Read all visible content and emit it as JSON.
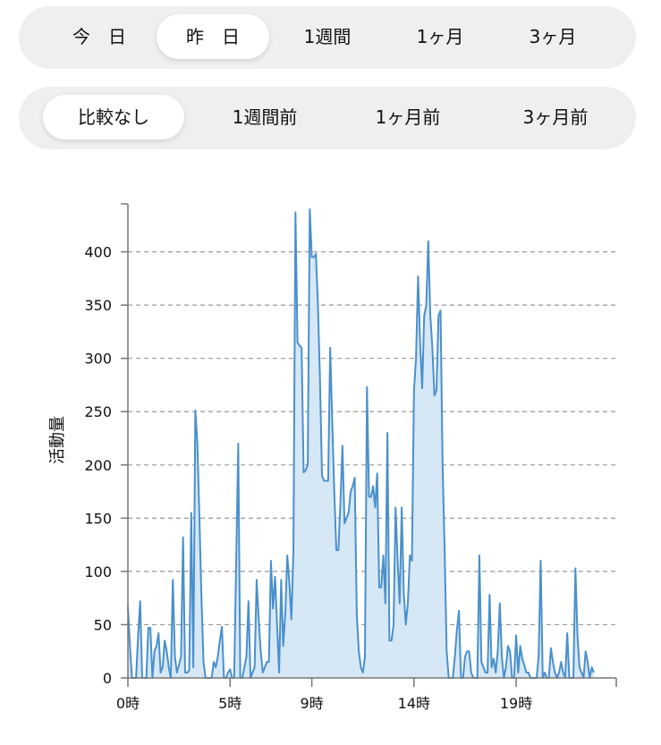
{
  "period_selector": {
    "options": [
      "今　日",
      "昨　日",
      "1週間",
      "1ヶ月",
      "3ヶ月"
    ],
    "selected": "昨　日"
  },
  "compare_selector": {
    "options": [
      "比較なし",
      "1週間前",
      "1ヶ月前",
      "3ヶ月前"
    ],
    "selected": "比較なし"
  },
  "colors": {
    "line": "#4a90cc",
    "fill": "#d6e7f6",
    "grid": "#9a9a9a"
  },
  "chart_data": {
    "type": "area",
    "ylabel": "活動量",
    "xlabel": "",
    "ylim": [
      0,
      445
    ],
    "xlim": [
      0,
      23.9
    ],
    "yticks": [
      0,
      50,
      100,
      150,
      200,
      250,
      300,
      350,
      400
    ],
    "xticks": [
      {
        "value": 0,
        "label": "0時"
      },
      {
        "value": 5,
        "label": "5時"
      },
      {
        "value": 9,
        "label": "9時"
      },
      {
        "value": 14,
        "label": "14時"
      },
      {
        "value": 19,
        "label": "19時"
      }
    ],
    "grid": true,
    "x_step_hours": 0.1,
    "values": [
      67,
      30,
      0,
      0,
      0,
      40,
      72,
      0,
      0,
      0,
      47,
      47,
      0,
      25,
      30,
      42,
      5,
      10,
      35,
      25,
      10,
      0,
      92,
      20,
      5,
      12,
      20,
      132,
      5,
      5,
      7,
      155,
      10,
      251,
      220,
      150,
      75,
      15,
      0,
      0,
      0,
      0,
      15,
      10,
      20,
      35,
      48,
      0,
      0,
      5,
      8,
      0,
      0,
      110,
      220,
      0,
      0,
      10,
      20,
      72,
      0,
      5,
      10,
      92,
      55,
      25,
      5,
      10,
      15,
      15,
      110,
      65,
      95,
      50,
      5,
      92,
      30,
      60,
      115,
      90,
      55,
      120,
      437,
      315,
      312,
      310,
      193,
      195,
      200,
      440,
      395,
      395,
      398,
      350,
      280,
      190,
      185,
      185,
      185,
      310,
      240,
      175,
      120,
      120,
      165,
      218,
      145,
      150,
      155,
      175,
      180,
      188,
      60,
      25,
      10,
      5,
      20,
      273,
      170,
      170,
      180,
      160,
      192,
      85,
      85,
      115,
      70,
      230,
      35,
      35,
      50,
      160,
      110,
      70,
      160,
      80,
      50,
      70,
      115,
      110,
      270,
      300,
      377,
      315,
      272,
      340,
      350,
      410,
      340,
      310,
      265,
      270,
      340,
      345,
      200,
      120,
      25,
      0,
      0,
      0,
      20,
      45,
      63,
      0,
      0,
      20,
      25,
      25,
      5,
      0,
      0,
      0,
      115,
      15,
      10,
      5,
      5,
      78,
      10,
      18,
      5,
      25,
      70,
      20,
      0,
      10,
      30,
      25,
      0,
      0,
      40,
      5,
      30,
      18,
      12,
      5,
      5,
      0,
      0,
      0,
      0,
      20,
      110,
      0,
      5,
      0,
      0,
      28,
      15,
      5,
      0,
      5,
      15,
      5,
      0,
      42,
      0,
      0,
      0,
      103,
      40,
      10,
      5,
      0,
      25,
      15,
      0,
      10,
      5
    ]
  }
}
